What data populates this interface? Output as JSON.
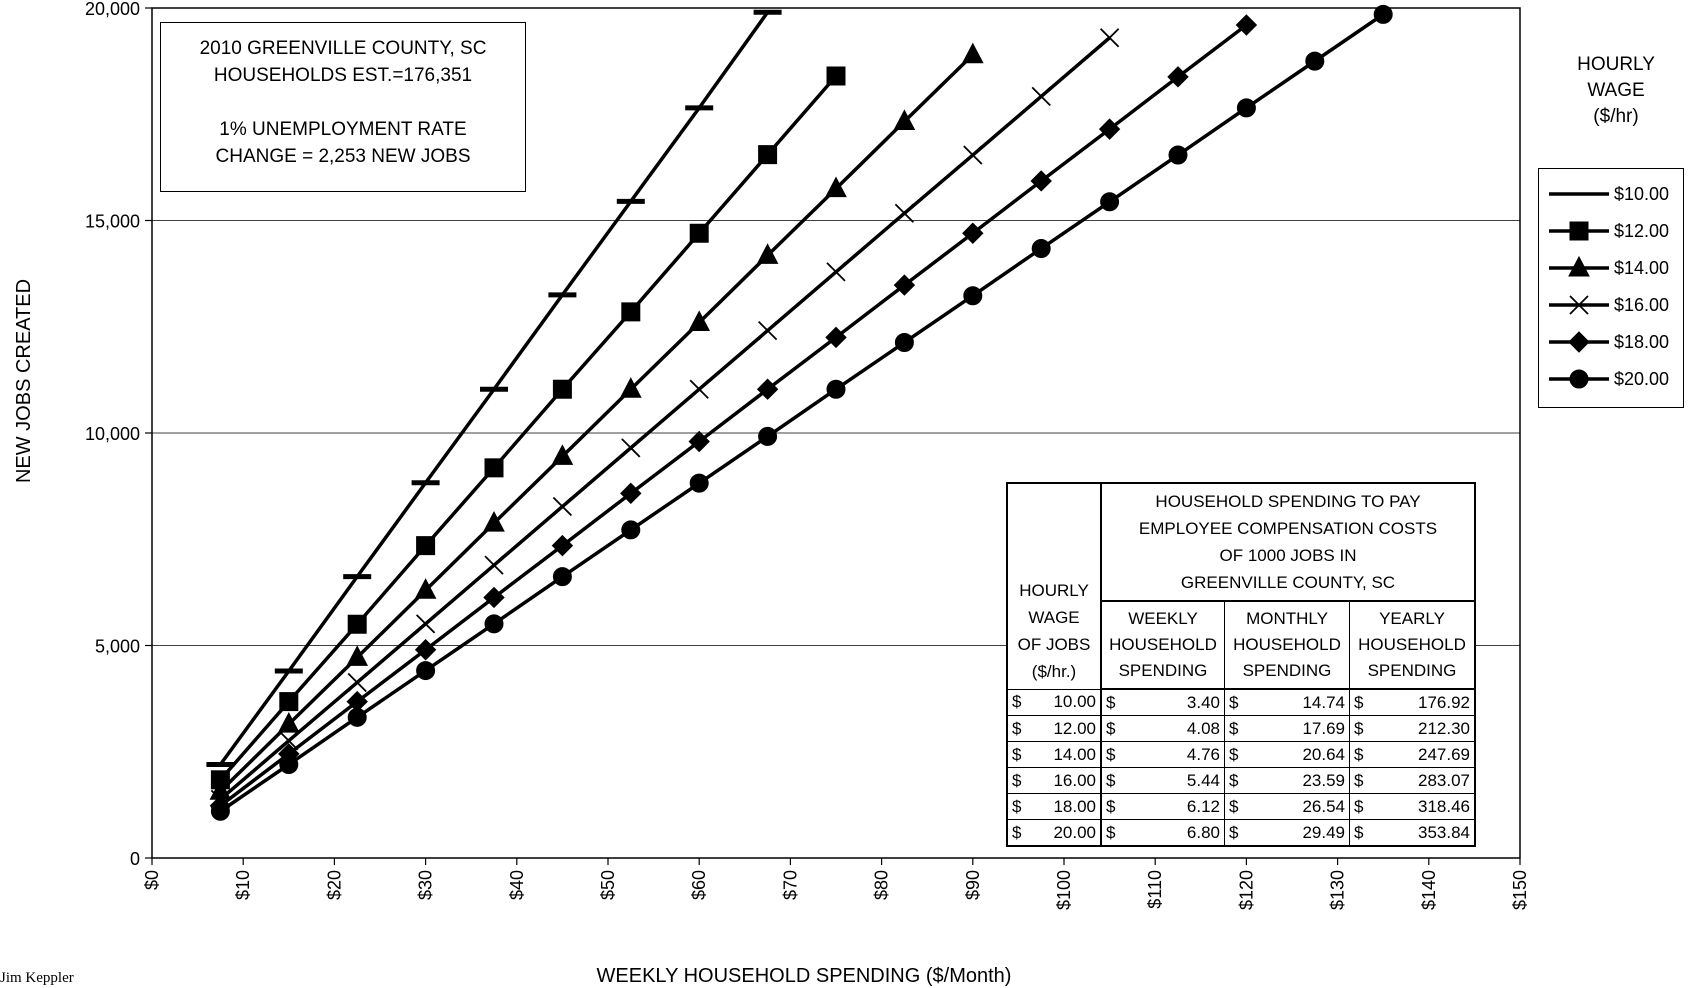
{
  "info_box": {
    "line1": "2010 GREENVILLE COUNTY, SC",
    "line2": "HOUSEHOLDS EST.=176,351",
    "line3": "1% UNEMPLOYMENT RATE",
    "line4": "CHANGE = 2,253 NEW JOBS"
  },
  "legend": {
    "title_line1": "HOURLY",
    "title_line2": "WAGE",
    "title_line3": "($/hr)",
    "items": [
      {
        "label": "$10.00",
        "marker": "dash"
      },
      {
        "label": "$12.00",
        "marker": "square"
      },
      {
        "label": "$14.00",
        "marker": "triangle"
      },
      {
        "label": "$16.00",
        "marker": "x"
      },
      {
        "label": "$18.00",
        "marker": "diamond"
      },
      {
        "label": "$20.00",
        "marker": "circle"
      }
    ]
  },
  "table": {
    "head_main_1": "HOUSEHOLD SPENDING TO PAY",
    "head_main_2": "EMPLOYEE COMPENSATION COSTS",
    "head_main_3": "OF 1000 JOBS IN",
    "head_main_4": "GREENVILLE COUNTY, SC",
    "head_wage_1": "HOURLY",
    "head_wage_2": "WAGE",
    "head_wage_3": "OF JOBS",
    "head_wage_4": "($/hr.)",
    "col_weekly": [
      "WEEKLY",
      "HOUSEHOLD",
      "SPENDING"
    ],
    "col_monthly": [
      "MONTHLY",
      "HOUSEHOLD",
      "SPENDING"
    ],
    "col_yearly": [
      "YEARLY",
      "HOUSEHOLD",
      "SPENDING"
    ],
    "currency": "$",
    "rows": [
      {
        "wage": "10.00",
        "weekly": "3.40",
        "monthly": "14.74",
        "yearly": "176.92"
      },
      {
        "wage": "12.00",
        "weekly": "4.08",
        "monthly": "17.69",
        "yearly": "212.30"
      },
      {
        "wage": "14.00",
        "weekly": "4.76",
        "monthly": "20.64",
        "yearly": "247.69"
      },
      {
        "wage": "16.00",
        "weekly": "5.44",
        "monthly": "23.59",
        "yearly": "283.07"
      },
      {
        "wage": "18.00",
        "weekly": "6.12",
        "monthly": "26.54",
        "yearly": "318.46"
      },
      {
        "wage": "20.00",
        "weekly": "6.80",
        "monthly": "29.49",
        "yearly": "353.84"
      }
    ]
  },
  "footer_name": "Jim Keppler",
  "chart_data": {
    "type": "line",
    "xlabel": "WEEKLY HOUSEHOLD SPENDING ($/Month)",
    "ylabel": "NEW JOBS CREATED",
    "xlim": [
      0,
      150
    ],
    "ylim": [
      0,
      20000
    ],
    "x_ticks": [
      "$0",
      "$10",
      "$20",
      "$30",
      "$40",
      "$50",
      "$60",
      "$70",
      "$80",
      "$90",
      "$100",
      "$110",
      "$120",
      "$130",
      "$140",
      "$150"
    ],
    "y_ticks": [
      "0",
      "5,000",
      "10,000",
      "15,000",
      "20,000"
    ],
    "grid": "horizontal",
    "legend_position": "right",
    "line_color": "#000000",
    "series": [
      {
        "name": "$10.00",
        "marker": "dash",
        "x": [
          7.5,
          15,
          22.5,
          30,
          37.5,
          45,
          52.5,
          60,
          67.5
        ],
        "y": [
          2200,
          4400,
          6620,
          8830,
          11030,
          13250,
          15450,
          17650,
          19900
        ]
      },
      {
        "name": "$12.00",
        "marker": "square",
        "x": [
          7.5,
          15,
          22.5,
          30,
          37.5,
          45,
          52.5,
          60,
          67.5,
          75
        ],
        "y": [
          1840,
          3680,
          5500,
          7350,
          9180,
          11030,
          12850,
          14700,
          16550,
          18400
        ]
      },
      {
        "name": "$14.00",
        "marker": "triangle",
        "x": [
          7.5,
          15,
          22.5,
          30,
          37.5,
          45,
          52.5,
          60,
          67.5,
          75,
          82.5,
          90
        ],
        "y": [
          1570,
          3150,
          4720,
          6300,
          7880,
          9450,
          11030,
          12600,
          14180,
          15750,
          17330,
          18900
        ]
      },
      {
        "name": "$16.00",
        "marker": "x",
        "x": [
          7.5,
          15,
          22.5,
          30,
          37.5,
          45,
          52.5,
          60,
          67.5,
          75,
          82.5,
          90,
          97.5,
          105
        ],
        "y": [
          1380,
          2760,
          4130,
          5510,
          6890,
          8270,
          9650,
          11030,
          12410,
          13790,
          15170,
          16540,
          17920,
          19300
        ]
      },
      {
        "name": "$18.00",
        "marker": "diamond",
        "x": [
          7.5,
          15,
          22.5,
          30,
          37.5,
          45,
          52.5,
          60,
          67.5,
          75,
          82.5,
          90,
          97.5,
          105,
          112.5,
          120
        ],
        "y": [
          1230,
          2450,
          3680,
          4900,
          6130,
          7350,
          8580,
          9800,
          11030,
          12250,
          13480,
          14700,
          15930,
          17150,
          18380,
          19600
        ]
      },
      {
        "name": "$20.00",
        "marker": "circle",
        "x": [
          7.5,
          15,
          22.5,
          30,
          37.5,
          45,
          52.5,
          60,
          67.5,
          75,
          82.5,
          90,
          97.5,
          105,
          112.5,
          120,
          127.5,
          135
        ],
        "y": [
          1100,
          2200,
          3310,
          4410,
          5510,
          6620,
          7720,
          8820,
          9920,
          11030,
          12130,
          13230,
          14340,
          15440,
          16540,
          17650,
          18750,
          19850
        ]
      }
    ]
  }
}
